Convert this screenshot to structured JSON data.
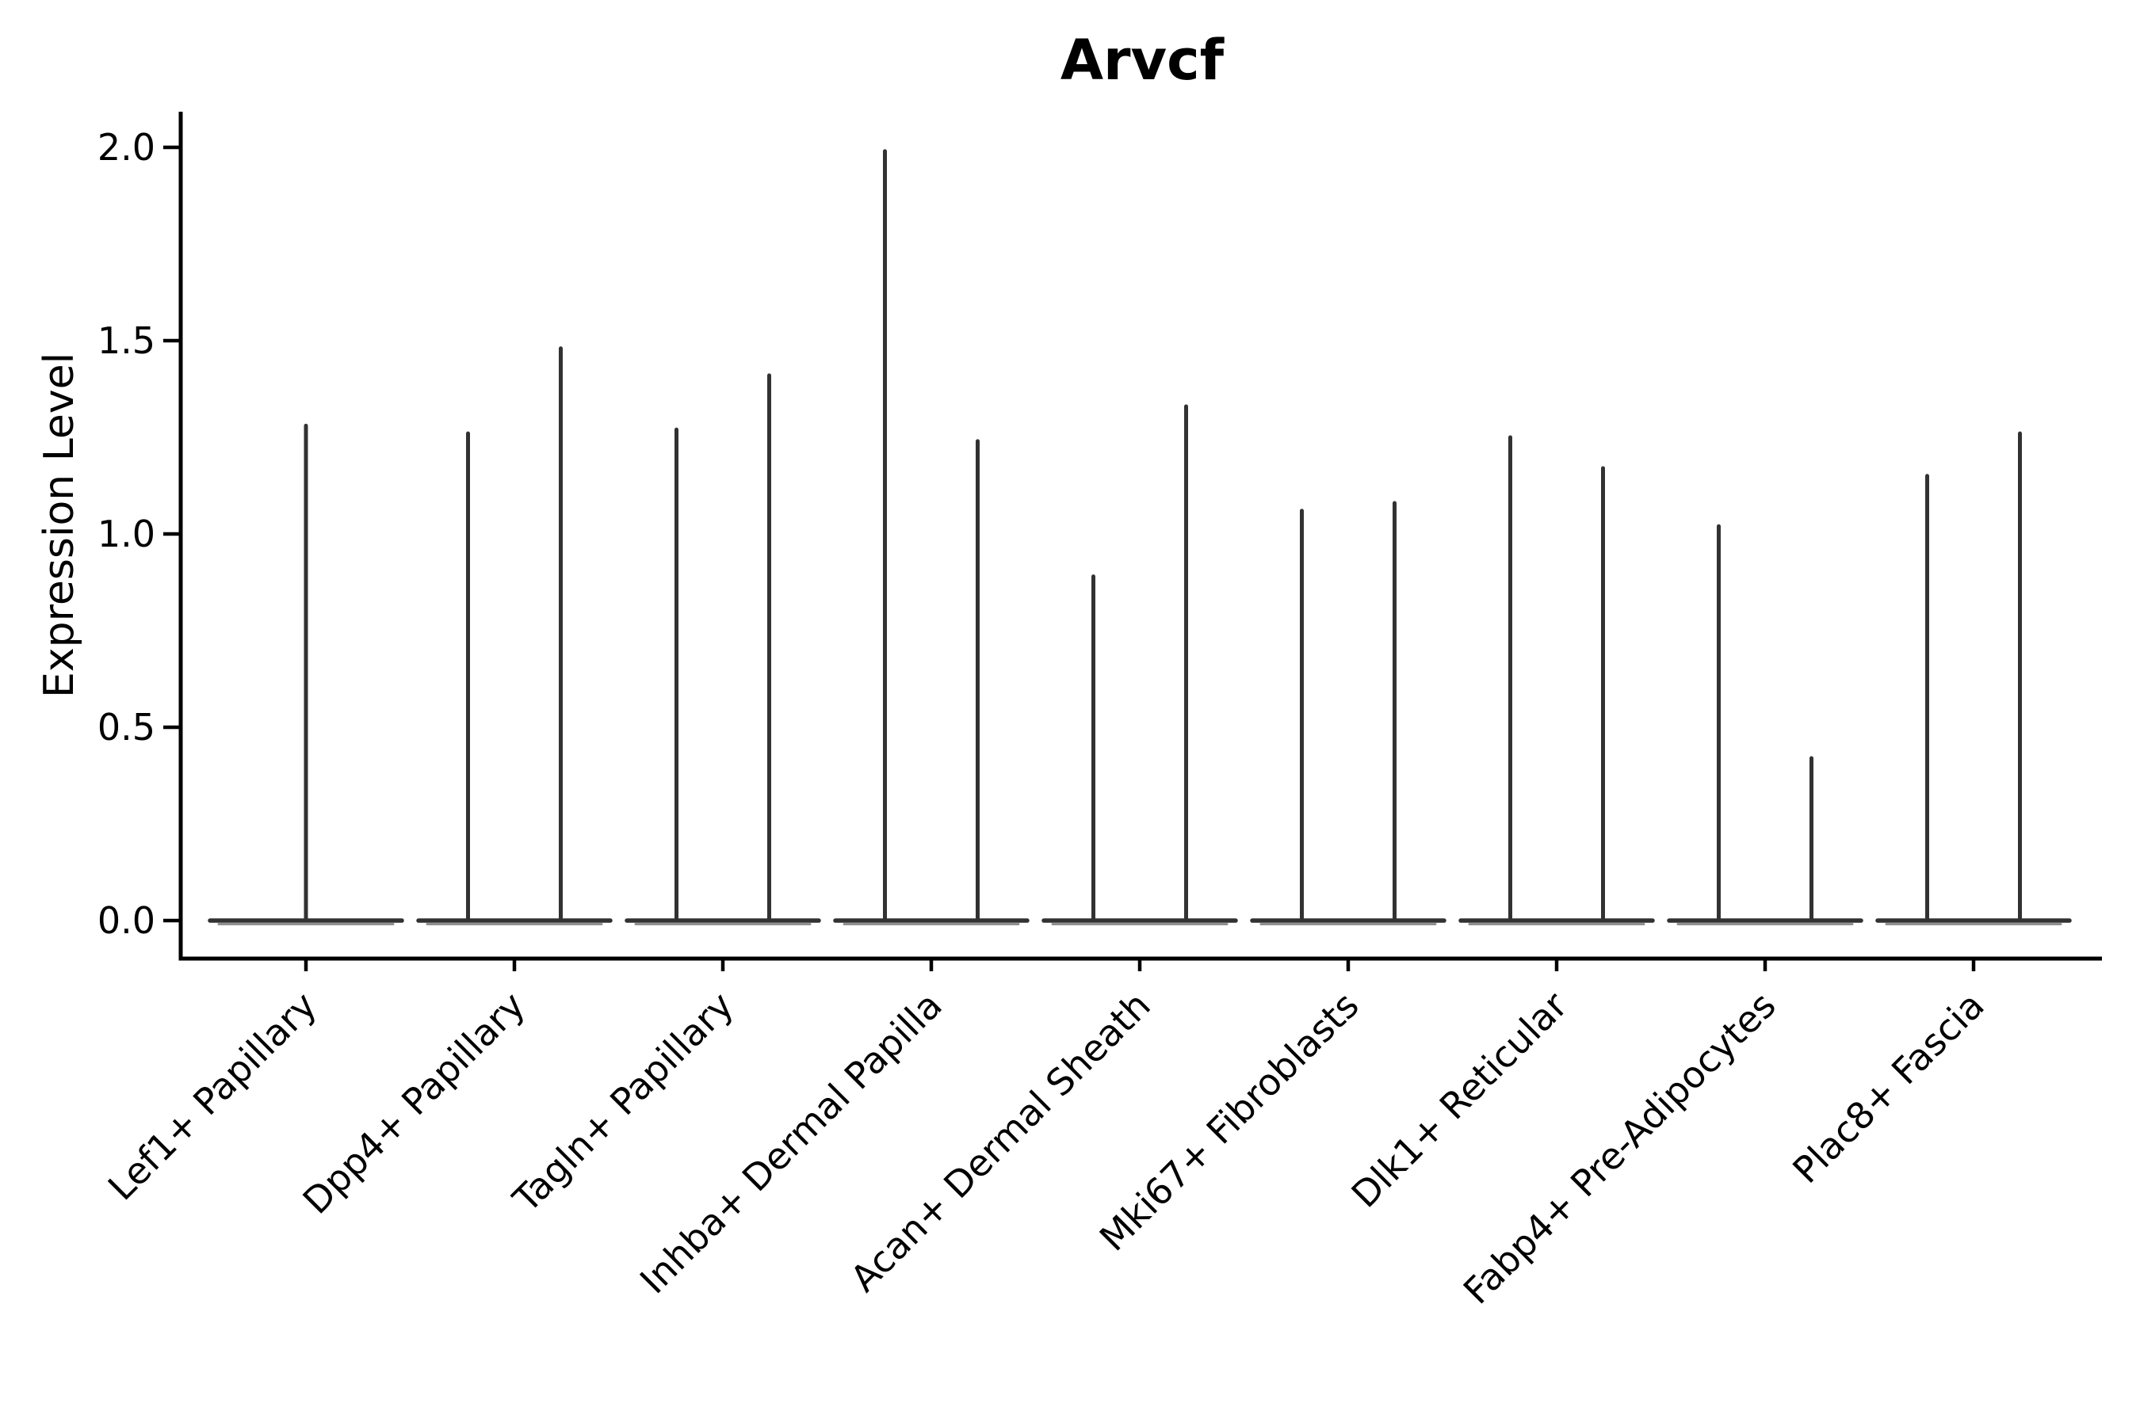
{
  "chart": {
    "title": "Arvcf",
    "y_axis": {
      "label": "Expression Level",
      "tick_labels": [
        "2.0",
        "1.5",
        "1.0",
        "0.5",
        "0.0"
      ],
      "tick_values": [
        2.0,
        1.5,
        1.0,
        0.5,
        0.0
      ]
    },
    "x_axis": {
      "categories": [
        "Lef1+ Papillary",
        "Dpp4+ Papillary",
        "Tagln+ Papillary",
        "Inhba+ Dermal Papilla",
        "Acan+ Dermal Sheath",
        "Mki67+ Fibroblasts",
        "Dlk1+ Reticular",
        "Fabp4+ Pre-Adipocytes",
        "Plac8+ Fascia"
      ]
    }
  },
  "chart_data": {
    "type": "violin",
    "title": "Arvcf",
    "xlabel": "",
    "ylabel": "Expression Level",
    "ylim": [
      -0.1,
      2.09
    ],
    "yticks": [
      0.0,
      0.5,
      1.0,
      1.5,
      2.0
    ],
    "grid": false,
    "legend": "none",
    "description": "Violin plot of gene expression; density mass concentrated at 0 gives each category a flat baseline lens at 0 with thin vertical spikes reaching the maximum expression values. First category shows a single centered spike; all others show two spikes.",
    "categories": [
      "Lef1+ Papillary",
      "Dpp4+ Papillary",
      "Tagln+ Papillary",
      "Inhba+ Dermal Papilla",
      "Acan+ Dermal Sheath",
      "Mki67+ Fibroblasts",
      "Dlk1+ Reticular",
      "Fabp4+ Pre-Adipocytes",
      "Plac8+ Fascia"
    ],
    "spike_maxima_per_category": [
      [
        1.28
      ],
      [
        1.26,
        1.48
      ],
      [
        1.27,
        1.41
      ],
      [
        1.99,
        1.24
      ],
      [
        0.89,
        1.33
      ],
      [
        1.06,
        1.08
      ],
      [
        1.25,
        1.17
      ],
      [
        1.02,
        0.42
      ],
      [
        1.15,
        1.26
      ]
    ],
    "baseline_value": 0.0
  },
  "colors": {
    "background": "#ffffff",
    "axis": "#000000",
    "text": "#000000",
    "violin": "#323232",
    "baseline_shadow": "#919191"
  }
}
